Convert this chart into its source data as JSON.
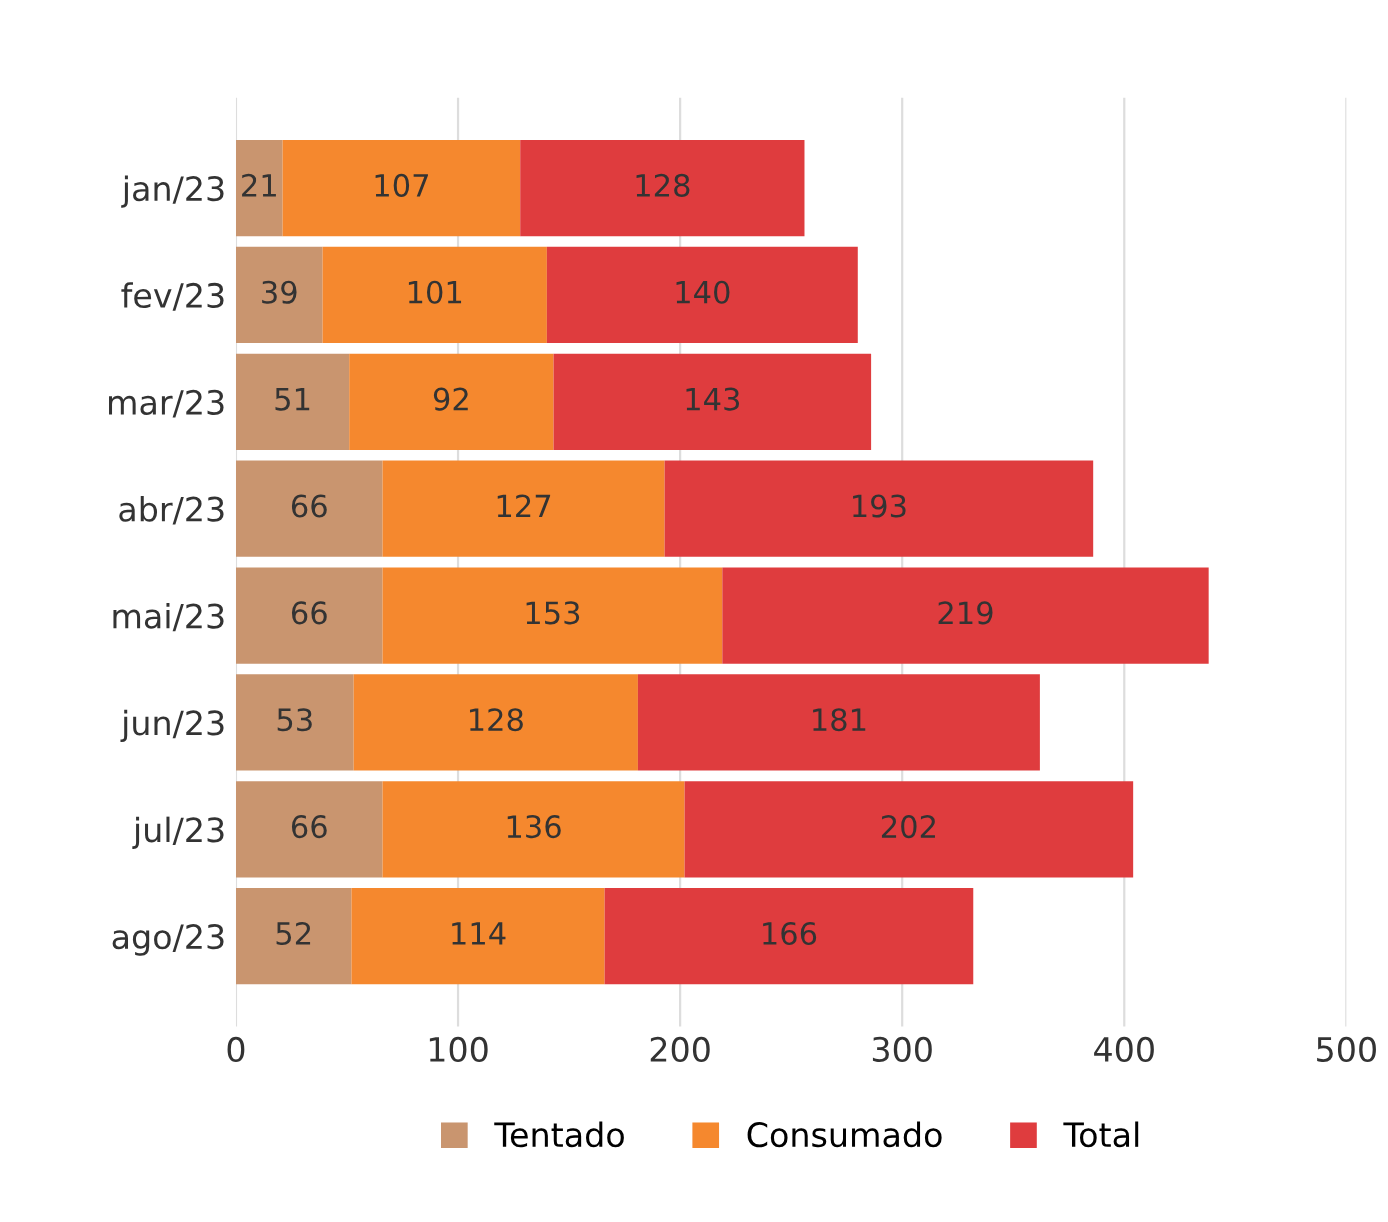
{
  "chart_data": {
    "type": "bar",
    "orientation": "horizontal",
    "stacked": true,
    "data_labels": true,
    "grid": "x",
    "legend": "bottom",
    "categories": [
      "jan/23",
      "fev/23",
      "mar/23",
      "abr/23",
      "mai/23",
      "jun/23",
      "jul/23",
      "ago/23"
    ],
    "series": [
      {
        "name": "Tentado",
        "color": "#c9956f",
        "values": [
          21,
          39,
          51,
          66,
          66,
          53,
          66,
          52
        ]
      },
      {
        "name": "Consumado",
        "color": "#f5882e",
        "values": [
          107,
          101,
          92,
          127,
          153,
          128,
          136,
          114
        ]
      },
      {
        "name": "Total",
        "color": "#df3c3e",
        "values": [
          128,
          140,
          143,
          193,
          219,
          181,
          202,
          166
        ]
      }
    ],
    "xlim": [
      0,
      500
    ],
    "xticks": [
      0,
      100,
      200,
      300,
      400,
      500
    ]
  }
}
